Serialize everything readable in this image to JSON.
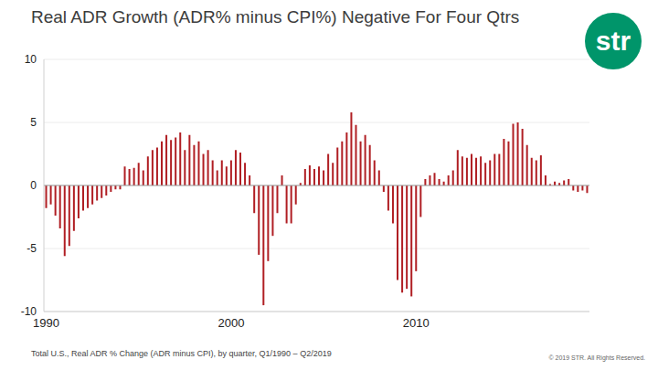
{
  "chart_data": {
    "type": "bar",
    "title": "Real ADR Growth (ADR% minus CPI%) Negative For Four Qtrs",
    "source": "Total U.S., Real ADR % Change (ADR minus CPI), by quarter, Q1/1990 – Q2/2019",
    "copyright": "© 2019 STR. All Rights Reserved.",
    "logo": "str",
    "categories": [
      "1990",
      null,
      null,
      null,
      null,
      null,
      null,
      null,
      null,
      null,
      null,
      null,
      null,
      null,
      null,
      null,
      null,
      null,
      null,
      null,
      null,
      null,
      null,
      null,
      null,
      null,
      null,
      null,
      null,
      null,
      null,
      null,
      null,
      null,
      null,
      null,
      null,
      null,
      null,
      null,
      "2000",
      null,
      null,
      null,
      null,
      null,
      null,
      null,
      null,
      null,
      null,
      null,
      null,
      null,
      null,
      null,
      null,
      null,
      null,
      null,
      null,
      null,
      null,
      null,
      null,
      null,
      null,
      null,
      null,
      null,
      null,
      null,
      null,
      null,
      null,
      null,
      null,
      null,
      null,
      null,
      "2010",
      null,
      null,
      null,
      null,
      null,
      null,
      null,
      null,
      null,
      null,
      null,
      null,
      null,
      null,
      null,
      null,
      null,
      null,
      null,
      null,
      null,
      null,
      null,
      null,
      null,
      null,
      null,
      null,
      null,
      null,
      null,
      null,
      null,
      null,
      null,
      null,
      null
    ],
    "values": [
      -1.8,
      -1.5,
      -2.4,
      -3.4,
      -5.6,
      -4.8,
      -3.6,
      -2.6,
      -2.0,
      -1.8,
      -1.5,
      -1.2,
      -1.0,
      -0.8,
      -0.5,
      -0.3,
      -0.3,
      1.5,
      1.3,
      1.4,
      1.8,
      1.2,
      2.3,
      2.8,
      3.0,
      3.5,
      4.0,
      3.6,
      3.8,
      4.2,
      2.8,
      4.0,
      3.2,
      3.5,
      2.5,
      2.8,
      2.0,
      1.2,
      2.0,
      1.5,
      2.0,
      2.8,
      2.6,
      1.8,
      0.8,
      -2.2,
      -5.5,
      -9.5,
      -6.0,
      -4.0,
      -2.2,
      0.8,
      -3.0,
      -3.0,
      -1.5,
      0.2,
      1.3,
      1.6,
      1.3,
      1.5,
      1.2,
      2.5,
      1.8,
      3.0,
      3.5,
      4.2,
      5.8,
      4.8,
      3.5,
      4.0,
      3.2,
      2.0,
      1.2,
      -0.5,
      -2.0,
      -3.0,
      -7.5,
      -8.5,
      -8.2,
      -8.8,
      -6.8,
      -2.5,
      0.5,
      0.8,
      1.0,
      0.5,
      0.3,
      0.8,
      1.2,
      2.8,
      2.3,
      2.2,
      2.5,
      2.2,
      2.3,
      1.8,
      2.0,
      2.5,
      2.5,
      3.7,
      3.5,
      4.9,
      5.0,
      4.5,
      3.2,
      2.2,
      2.0,
      2.4,
      0.8,
      0.1,
      0.3,
      0.2,
      0.4,
      0.5,
      -0.4,
      -0.5,
      -0.4,
      -0.6
    ],
    "color": "#b01e23",
    "ylim": [
      -10,
      10
    ],
    "yticks": [
      -10,
      -5,
      0,
      5,
      10
    ],
    "grid": true
  }
}
